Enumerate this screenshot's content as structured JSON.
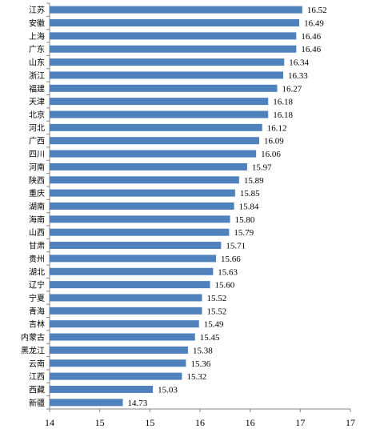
{
  "chart_data": {
    "type": "bar",
    "orientation": "horizontal",
    "title": "",
    "xlabel": "",
    "ylabel": "",
    "xlim": [
      14,
      17
    ],
    "ticks": [
      14,
      14.5,
      15,
      15.5,
      16,
      16.5,
      17
    ],
    "tick_labels": [
      "14",
      "15",
      "15",
      "16",
      "16",
      "17",
      "17"
    ],
    "grid": false,
    "legend": "none",
    "bar_color": "#4F81BD",
    "categories": [
      "江苏",
      "安徽",
      "上海",
      "广东",
      "山东",
      "浙江",
      "福建",
      "天津",
      "北京",
      "河北",
      "广西",
      "四川",
      "河南",
      "陕西",
      "重庆",
      "湖南",
      "海南",
      "山西",
      "甘肃",
      "贵州",
      "湖北",
      "辽宁",
      "宁夏",
      "青海",
      "吉林",
      "内蒙古",
      "黑龙江",
      "云南",
      "江西",
      "西藏",
      "新疆"
    ],
    "values": [
      16.52,
      16.49,
      16.46,
      16.46,
      16.34,
      16.33,
      16.27,
      16.18,
      16.18,
      16.12,
      16.09,
      16.06,
      15.97,
      15.89,
      15.85,
      15.84,
      15.8,
      15.79,
      15.71,
      15.66,
      15.63,
      15.6,
      15.52,
      15.52,
      15.49,
      15.45,
      15.38,
      15.36,
      15.32,
      15.03,
      14.73
    ],
    "value_labels": [
      "16.52",
      "16.49",
      "16.46",
      "16.46",
      "16.34",
      "16.33",
      "16.27",
      "16.18",
      "16.18",
      "16.12",
      "16.09",
      "16.06",
      "15.97",
      "15.89",
      "15.85",
      "15.84",
      "15.80",
      "15.79",
      "15.71",
      "15.66",
      "15.63",
      "15.60",
      "15.52",
      "15.52",
      "15.49",
      "15.45",
      "15.38",
      "15.36",
      "15.32",
      "15.03",
      "14.73"
    ]
  }
}
